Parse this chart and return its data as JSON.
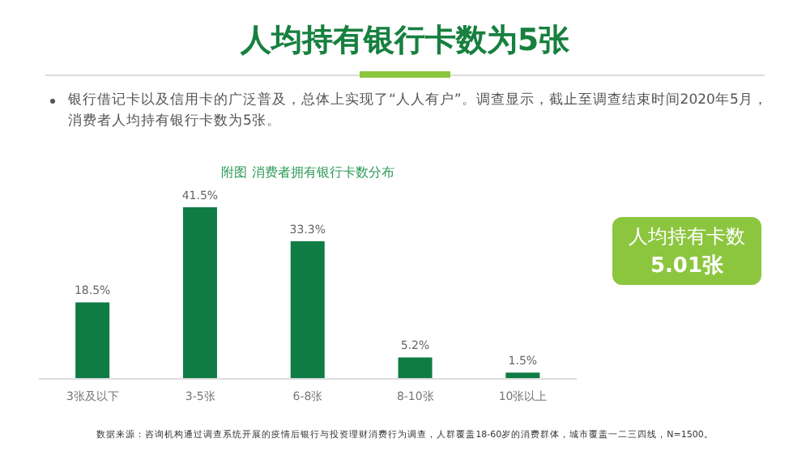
{
  "chart_data": {
    "type": "bar",
    "title": "人均持有银行卡数为5张",
    "subtitle": "附图 消费者拥有银行卡数分布",
    "categories": [
      "3张及以下",
      "3-5张",
      "6-8张",
      "8-10张",
      "10张以上"
    ],
    "values": [
      18.5,
      41.5,
      33.3,
      5.2,
      1.5
    ],
    "value_labels": [
      "18.5%",
      "41.5%",
      "33.3%",
      "5.2%",
      "1.5%"
    ],
    "color": "#0f7c45",
    "annotations": [
      "银行借记卡以及信用卡的广泛普及，总体上实现了“人人有户”。调查显示，截止至调查结束时间2020年5月，消费者人均持有银行卡数为5张。",
      "人均持有卡数",
      "5.01张",
      "数据来源：咨询机构通过调查系统开展的疫情后银行与投资理财消费行为调查，人群覆盖18-60岁的消费群体，城市覆盖一二三四线，N=1500。"
    ]
  }
}
